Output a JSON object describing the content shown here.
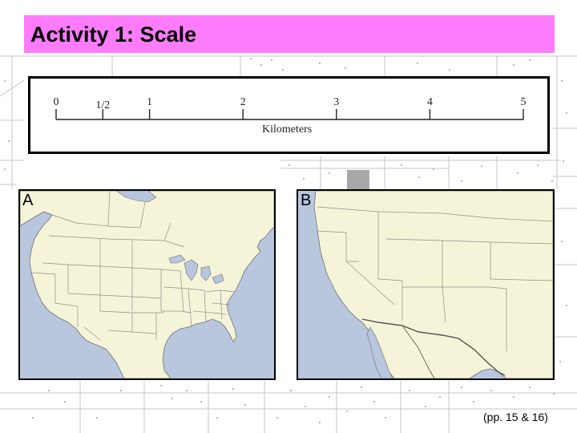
{
  "title": "Activity 1: Scale",
  "scale_bar": {
    "tick_labels": [
      "0",
      "1/2",
      "1",
      "2",
      "3",
      "4",
      "5"
    ],
    "tick_values": [
      0,
      0.5,
      1,
      2,
      3,
      4,
      5
    ],
    "max_value": 5,
    "unit_label": "Kilometers"
  },
  "maps": [
    {
      "label": "A",
      "region": "north-america"
    },
    {
      "label": "B",
      "region": "southwestern-united-states"
    }
  ],
  "page_reference": "(pp. 15 & 16)",
  "colors": {
    "title_bar": "#fc7cfc",
    "land": "#f6f4d8",
    "water": "#b8c6de",
    "border_line": "#9a9a9a",
    "coast_line": "#707070"
  }
}
